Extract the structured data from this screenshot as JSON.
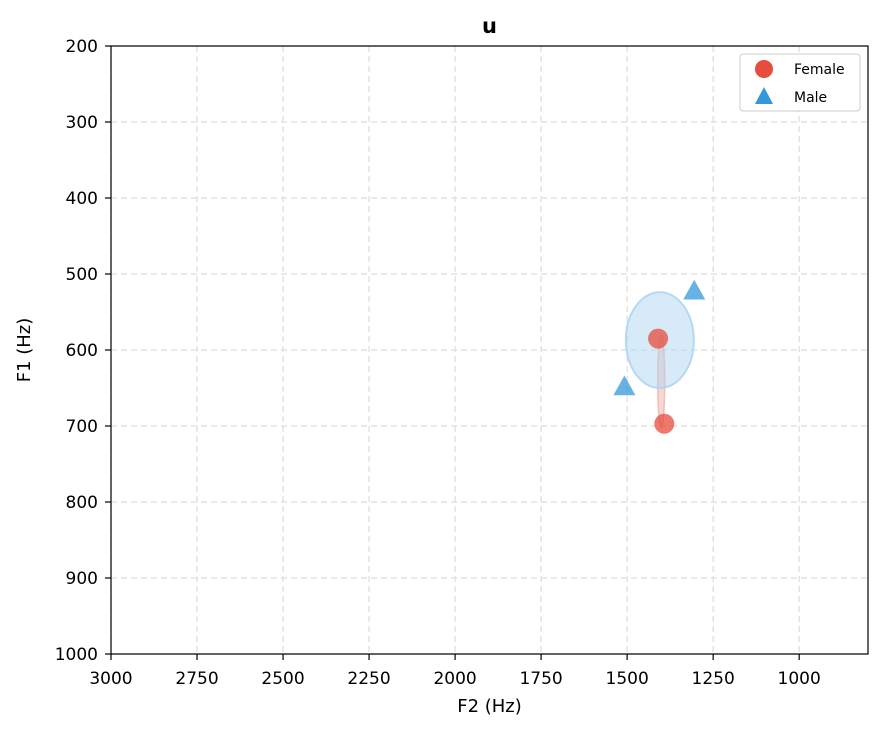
{
  "chart_data": {
    "type": "scatter",
    "title": "u",
    "xlabel": "F2 (Hz)",
    "ylabel": "F1 (Hz)",
    "xlim": [
      3000,
      800
    ],
    "ylim": [
      1000,
      200
    ],
    "x_inverted": true,
    "y_inverted": true,
    "xticks": [
      3000,
      2750,
      2500,
      2250,
      2000,
      1750,
      1500,
      1250,
      1000
    ],
    "yticks": [
      200,
      300,
      400,
      500,
      600,
      700,
      800,
      900,
      1000
    ],
    "xtick_labels": [
      "3000",
      "2750",
      "2500",
      "2250",
      "2000",
      "1750",
      "1500",
      "1250",
      "1000"
    ],
    "ytick_labels": [
      "200",
      "300",
      "400",
      "500",
      "600",
      "700",
      "800",
      "900",
      "1000"
    ],
    "grid": true,
    "legend_position": "top-right",
    "series": [
      {
        "name": "Female",
        "marker": "circle",
        "color": "#e74c3c",
        "points": [
          {
            "f2": 1410,
            "f1": 585
          },
          {
            "f2": 1392,
            "f1": 697
          }
        ],
        "ellipse": {
          "center_f2": 1401,
          "center_f1": 641,
          "color": "#f4a6a0"
        }
      },
      {
        "name": "Male",
        "marker": "triangle",
        "color": "#3498db",
        "points": [
          {
            "f2": 1508,
            "f1": 648
          },
          {
            "f2": 1305,
            "f1": 522
          }
        ],
        "ellipse": {
          "center_f2": 1405,
          "center_f1": 587,
          "color": "#aed6f1"
        }
      }
    ]
  }
}
